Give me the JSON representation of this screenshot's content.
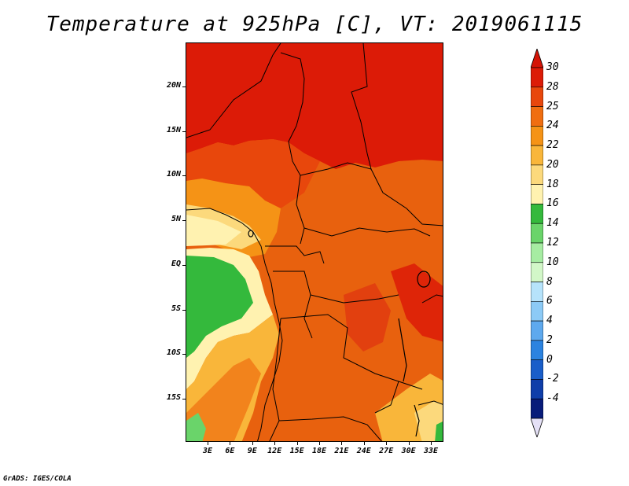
{
  "title": "Temperature at 925hPa [C], VT: 2019061115",
  "lat_labels": [
    "20N",
    "15N",
    "10N",
    "5N",
    "EQ",
    "5S",
    "10S",
    "15S"
  ],
  "lon_labels": [
    "3E",
    "6E",
    "9E",
    "12E",
    "15E",
    "18E",
    "21E",
    "24E",
    "27E",
    "30E",
    "33E"
  ],
  "colorbar": {
    "labels": [
      "30",
      "28",
      "25",
      "24",
      "22",
      "20",
      "18",
      "16",
      "14",
      "12",
      "10",
      "8",
      "6",
      "4",
      "2",
      "0",
      "-2",
      "-4"
    ],
    "colors": [
      "#dc1b07",
      "#e8470c",
      "#f06e10",
      "#f59316",
      "#f9b63a",
      "#fcd97c",
      "#fff2b0",
      "#34b93c",
      "#6ad46a",
      "#a6ecA2",
      "#d2f7c8",
      "#b6e3fb",
      "#8ccaf6",
      "#5ea9ee",
      "#2c83e0",
      "#1a5ec9",
      "#0f3ea9",
      "#081c7a"
    ],
    "top_color": "#d41406",
    "bottom_color": "#e4e0f6"
  },
  "footer": "GrADS: IGES/COLA"
}
